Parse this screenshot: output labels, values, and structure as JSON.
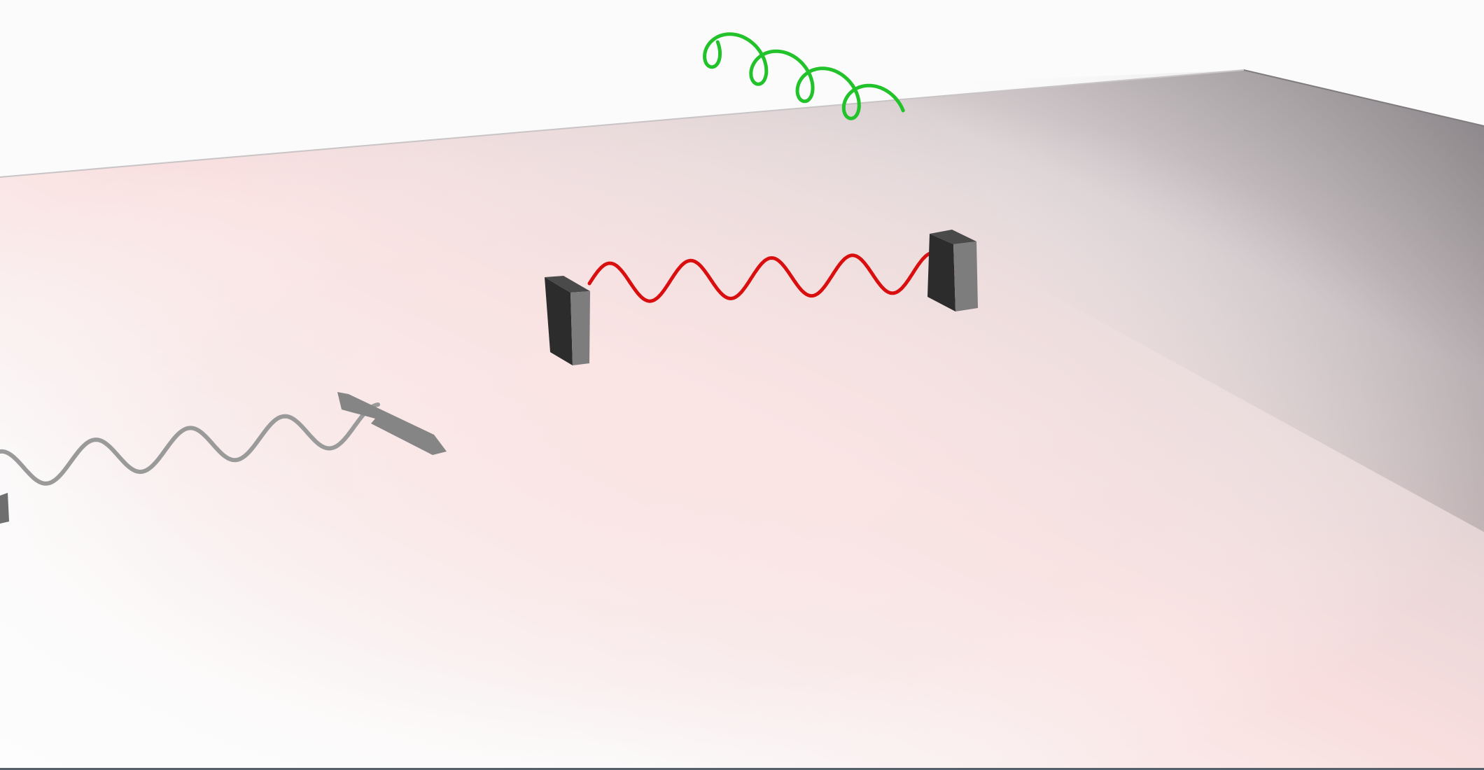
{
  "scene": {
    "colors": {
      "background": "#fbfbfb",
      "plane_far_right": "#8d898c",
      "plane_mid": "#d9cfd1",
      "plane_glow": "#f9dede",
      "plane_near": "#fbfafa",
      "standing_wave": "#d90f0f",
      "emitted_photon": "#22c22a",
      "mirror_front": "#2c2c2c",
      "mirror_side": "#7d7d7d",
      "mirror_top": "#4a4a4a",
      "incoming_wave": "#9a9a9a",
      "incoming_arrow": "#858585",
      "bottom_edge": "#55606a"
    },
    "icons": {
      "left_mirror": "mirror-block-icon",
      "right_mirror": "mirror-block-icon",
      "incoming_arrow": "arrow-head-icon",
      "photon_helix": "helix-icon"
    }
  }
}
